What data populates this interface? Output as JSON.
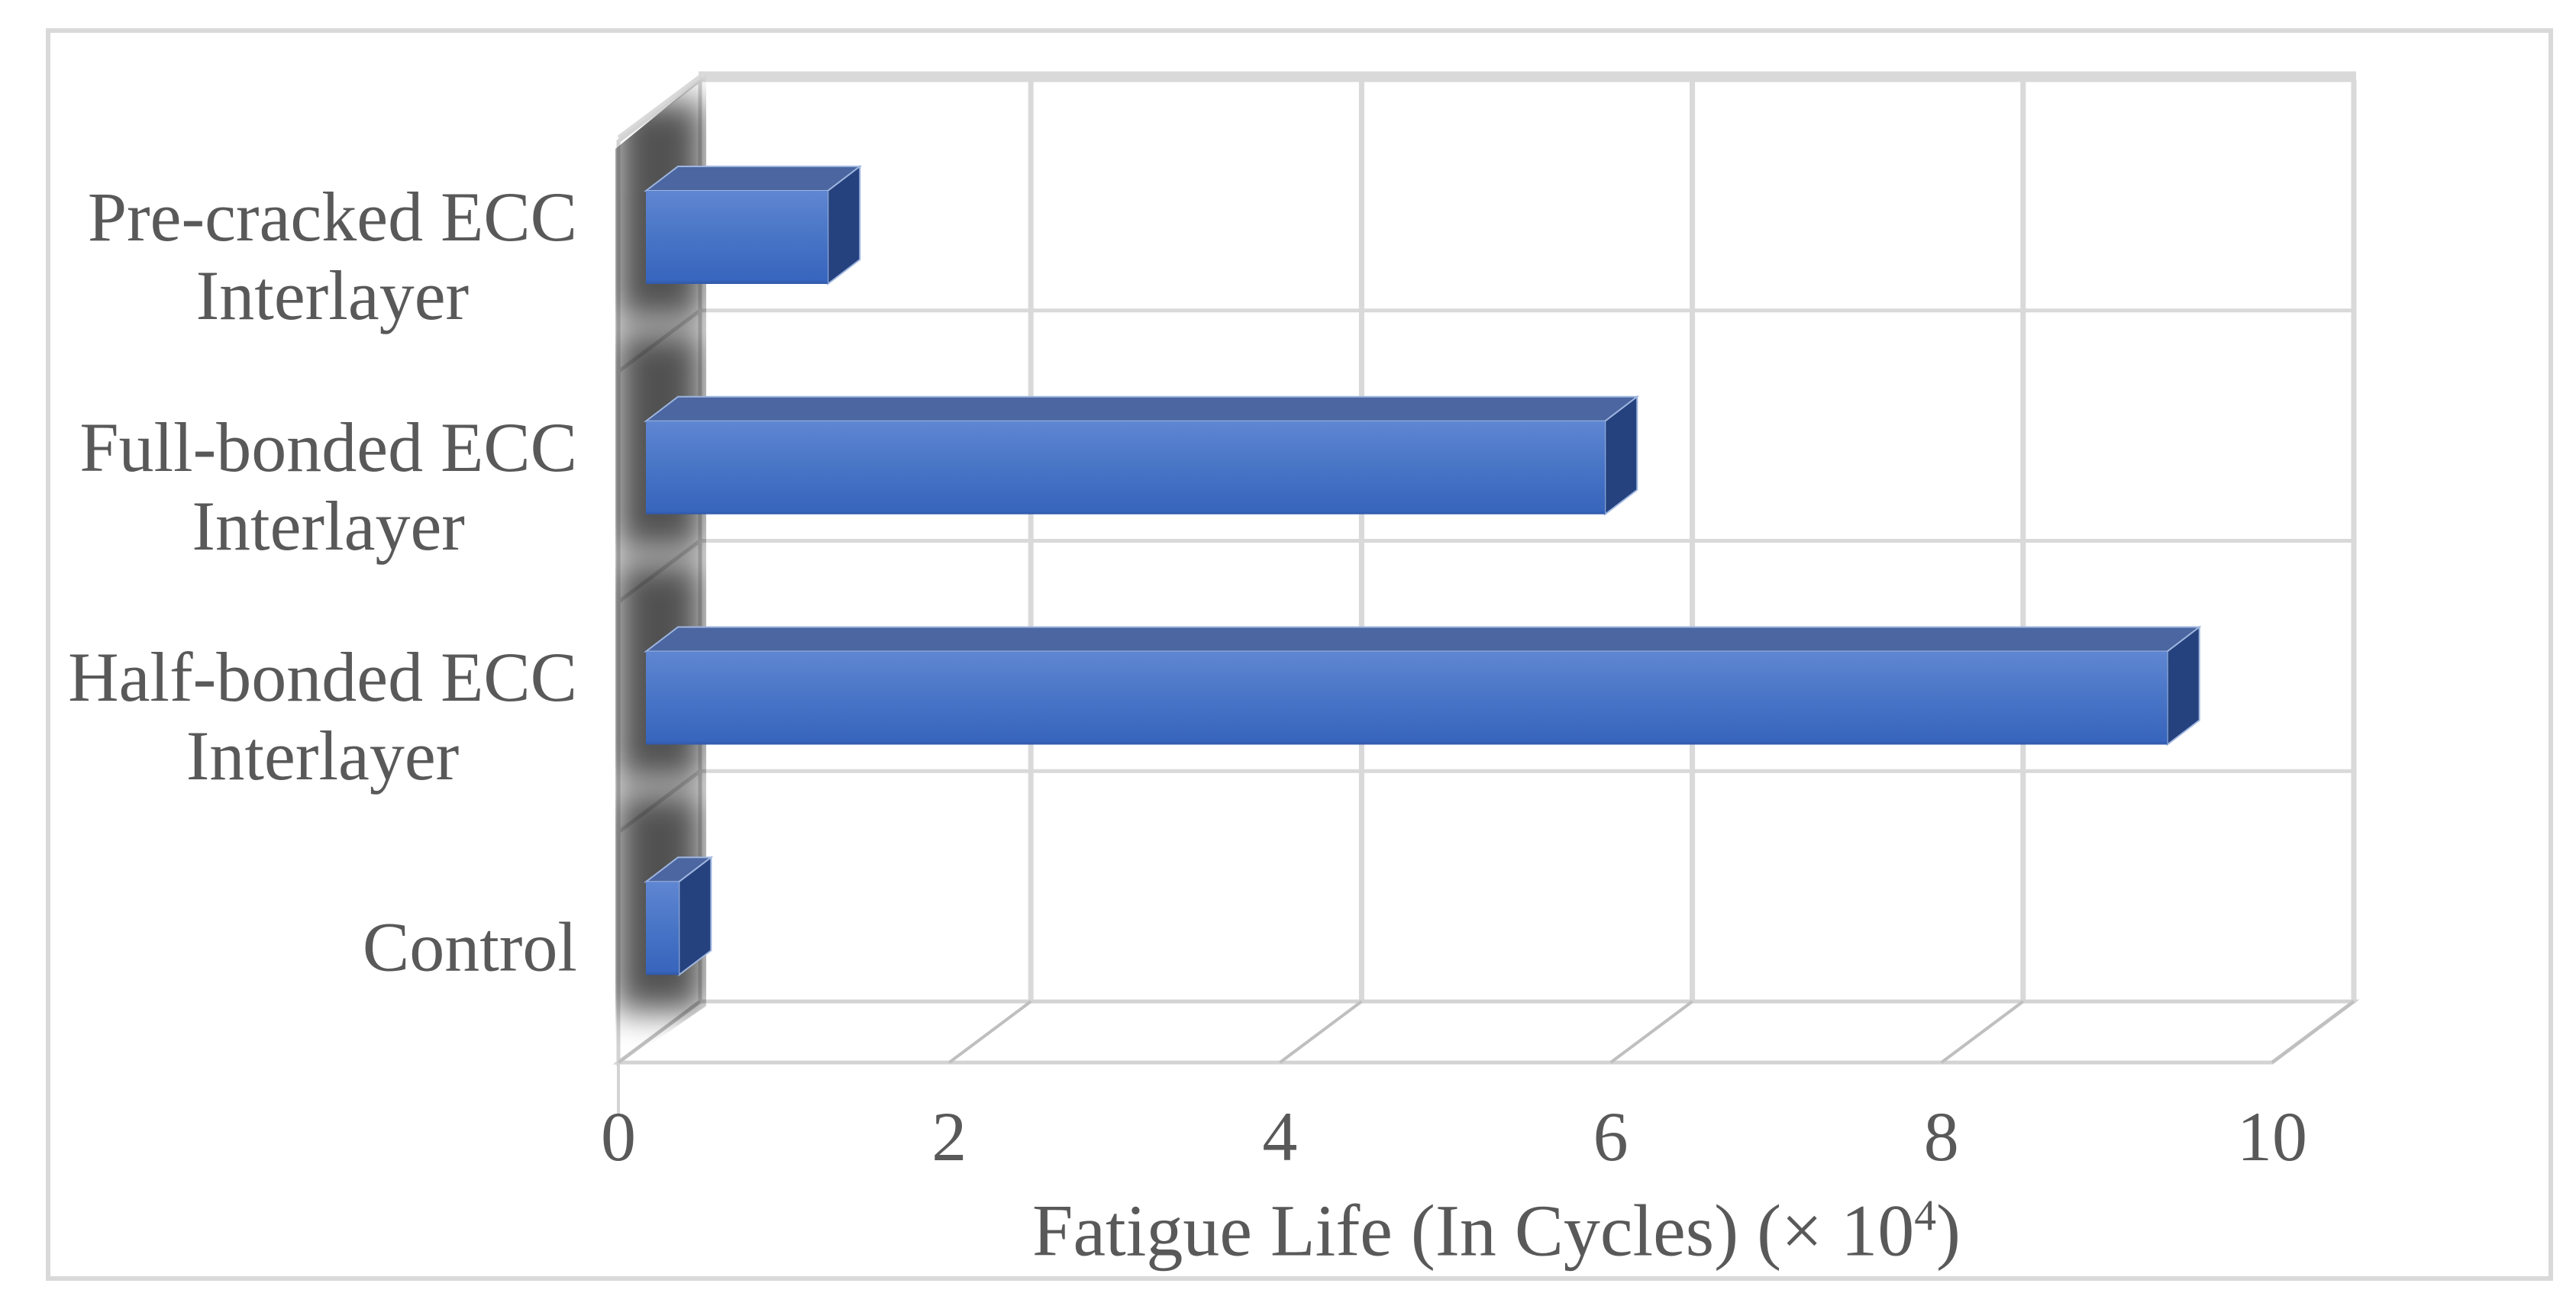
{
  "figure": {
    "background": "#ffffff",
    "border_color": "#d9d9d9"
  },
  "chart_data": {
    "type": "bar",
    "orientation": "horizontal",
    "projection": "3d",
    "title": "",
    "categories": [
      "Pre-cracked ECC Interlayer",
      "Full-bonded ECC Interlayer",
      "Half-bonded ECC Interlayer",
      "Control"
    ],
    "category_label_lines": [
      [
        "Pre-cracked ECC",
        "Interlayer"
      ],
      [
        "Full-bonded ECC",
        "Interlayer"
      ],
      [
        "Half-bonded ECC",
        "Interlayer"
      ],
      [
        "Control"
      ]
    ],
    "values": [
      1.1,
      5.8,
      9.2,
      0.2
    ],
    "xlabel": "Fatigue Life (In Cycles) (× 10⁴)",
    "xlabel_parts": {
      "pre": "Fatigue Life (In Cycles) (× 10",
      "sup": "4",
      "post": ")"
    },
    "xticks": [
      "0",
      "2",
      "4",
      "6",
      "8",
      "10"
    ],
    "xtick_values": [
      0,
      2,
      4,
      6,
      8,
      10
    ],
    "xlim": [
      0,
      10
    ],
    "grid": true,
    "legend": false,
    "colors": {
      "bar_front_top": "#5f86d1",
      "bar_front_mid": "#4673c5",
      "bar_front_bottom": "#3865bd",
      "bar_front_edge": "#3058a9",
      "bar_top_face": "#4b66a0",
      "bar_side_face": "#25427e",
      "bar_outline": "#9fb6e0",
      "gridline": "#d9d9d9",
      "wall_edge": "#d3d3d3",
      "tick_mark": "#bfbfbf",
      "text": "#595959",
      "shadow": "#000000",
      "wall_fill": "#ffffff"
    }
  }
}
